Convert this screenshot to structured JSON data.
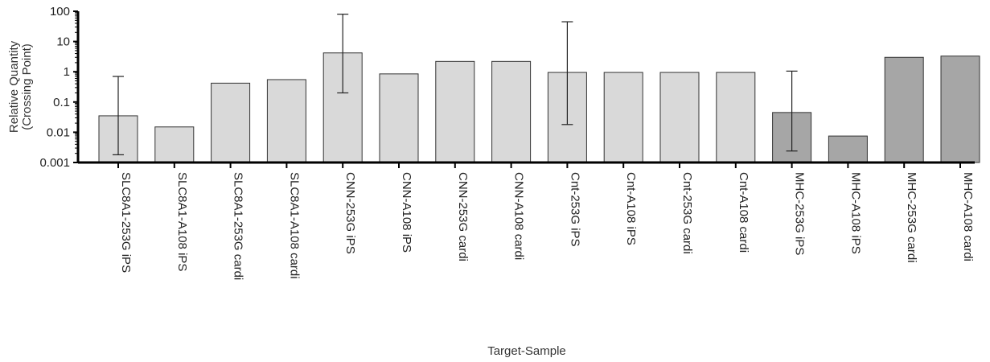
{
  "chart_data": {
    "type": "bar",
    "title": "",
    "xlabel": "Target-Sample",
    "ylabel": [
      "Relative Quantity",
      "(Crossing Point)"
    ],
    "yscale": "log",
    "ylim": [
      0.001,
      100
    ],
    "yticks": [
      "0.001",
      "0.01",
      "0.1",
      "1",
      "10",
      "100"
    ],
    "grid": false,
    "colors": {
      "light": "#d9d9d9",
      "dark": "#a6a6a6",
      "edge": "#333333",
      "axis": "#000000"
    },
    "categories": [
      "SLC8A1-253G iPS",
      "SLC8A1-A108 iPS",
      "SLC8A1-253G cardi",
      "SLC8A1-A108 cardi",
      "CNN-253G iPS",
      "CNN-A108 iPS",
      "CNN-253G cardi",
      "CNN-A108 cardi",
      "Cnt-253G iPS",
      "Cnt-A108 iPS",
      "Cnt-253G cardi",
      "Cnt-A108 cardi",
      "MHC-253G iPS",
      "MHC-A108 iPS",
      "MHC-253G cardi",
      "MHC-A108 cardi"
    ],
    "values": [
      0.035,
      0.015,
      0.42,
      0.55,
      4.2,
      0.85,
      2.2,
      2.2,
      0.95,
      0.95,
      0.95,
      0.95,
      0.045,
      0.0075,
      3.0,
      3.3
    ],
    "fill": [
      "light",
      "light",
      "light",
      "light",
      "light",
      "light",
      "light",
      "light",
      "light",
      "light",
      "light",
      "light",
      "dark",
      "dark",
      "dark",
      "dark"
    ],
    "error_bars": [
      {
        "index": 0,
        "low": 0.0018,
        "high": 0.7
      },
      {
        "index": 4,
        "low": 0.2,
        "high": 80
      },
      {
        "index": 8,
        "low": 0.018,
        "high": 45
      },
      {
        "index": 12,
        "low": 0.0024,
        "high": 1.05
      }
    ]
  }
}
